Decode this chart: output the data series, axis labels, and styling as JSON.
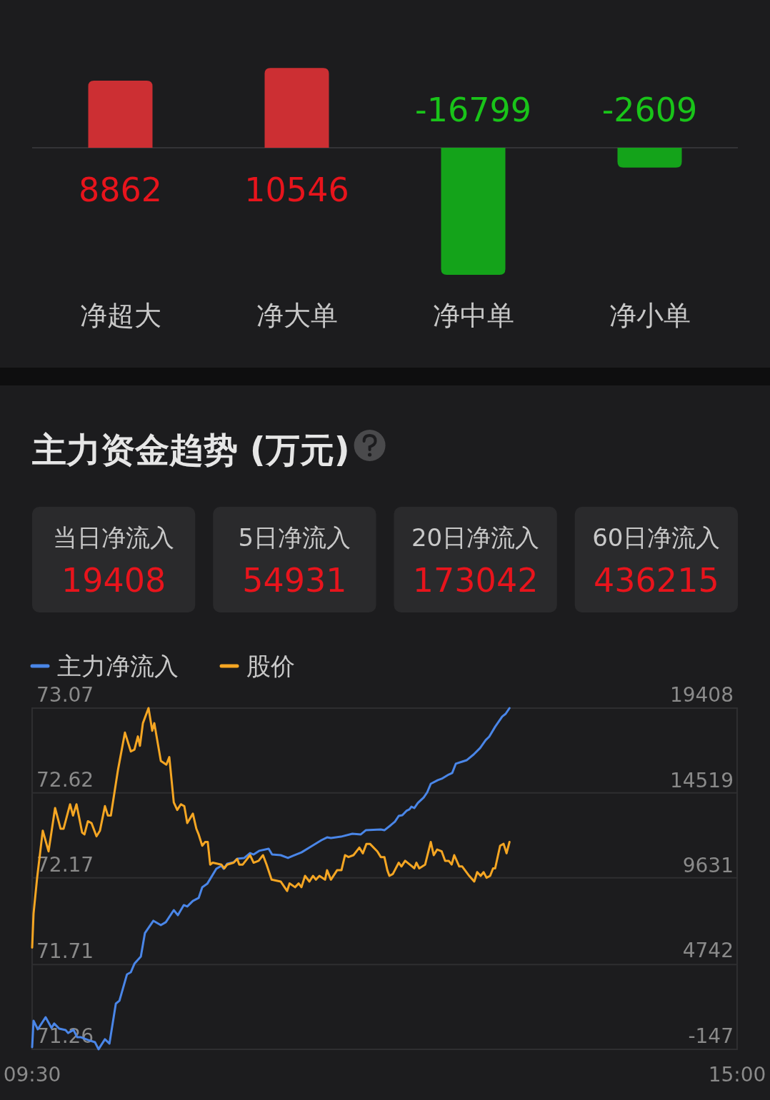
{
  "chart_data": [
    {
      "type": "bar",
      "categories": [
        "净超大",
        "净大单",
        "净中单",
        "净小单"
      ],
      "values": [
        8862,
        10546,
        -16799,
        -2609
      ],
      "colors": [
        "#cc2f33",
        "#cc2f33",
        "#14a31a",
        "#14a31a"
      ],
      "data_labels": true
    },
    {
      "type": "other",
      "title": "主力资金趋势 (万元)",
      "categories": [
        "当日净流入",
        "5日净流入",
        "20日净流入",
        "60日净流入"
      ],
      "values": [
        19408,
        54931,
        173042,
        436215
      ],
      "data_labels": true
    },
    {
      "type": "line",
      "legend": "top left",
      "grid": "y",
      "xlim": [
        9.5,
        15
      ],
      "xticks": [
        {
          "value": 9.5,
          "label": "09:30"
        },
        {
          "value": 15,
          "label": "15:00"
        }
      ],
      "ylim": [
        71.26,
        73.07
      ],
      "yticks": [
        73.07,
        72.62,
        72.17,
        71.71,
        71.26
      ],
      "y2lim": [
        -147,
        19408
      ],
      "y2ticks": [
        19408,
        14519,
        9631,
        4742,
        -147
      ],
      "series": [
        {
          "name": "主力净流入",
          "color": "#4a86e8",
          "axis": "y2",
          "x": [
            9.5,
            9.511,
            9.544,
            9.605,
            9.651,
            9.672,
            9.711,
            9.761,
            9.78,
            9.823,
            9.851,
            9.878,
            9.935,
            9.99,
            10.018,
            10.068,
            10.103,
            10.153,
            10.181,
            10.24,
            10.27,
            10.298,
            10.348,
            10.38,
            10.446,
            10.504,
            10.543,
            10.605,
            10.637,
            10.683,
            10.71,
            10.754,
            10.799,
            10.827,
            10.866,
            10.937,
            10.976,
            10.994,
            11.022,
            11.072,
            11.1,
            11.155,
            11.2,
            11.228,
            11.271,
            11.345,
            11.372,
            11.439,
            11.496,
            11.535,
            11.601,
            11.684,
            11.757,
            11.801,
            11.831,
            11.909,
            11.998,
            12.064,
            12.103,
            12.22,
            12.248,
            12.298,
            12.33,
            12.36,
            12.388,
            12.42,
            12.443,
            12.459,
            12.481,
            12.509,
            12.555,
            12.582,
            12.61,
            12.665,
            12.695,
            12.75,
            12.777,
            12.805,
            12.855,
            12.889,
            12.944,
            12.995,
            13.038,
            13.066,
            13.112,
            13.167,
            13.194,
            13.224
          ],
          "values": [
            -20,
            1490,
            1000,
            1690,
            1080,
            1330,
            1040,
            960,
            790,
            960,
            550,
            550,
            390,
            260,
            -140,
            430,
            180,
            2470,
            2640,
            4150,
            4270,
            4760,
            5170,
            6520,
            7220,
            6970,
            7140,
            7830,
            7540,
            8120,
            8040,
            8360,
            8530,
            9140,
            9340,
            10200,
            10370,
            10200,
            10490,
            10570,
            10780,
            10820,
            11100,
            11020,
            11230,
            11350,
            11020,
            10980,
            10820,
            10940,
            11140,
            11510,
            11840,
            12000,
            11960,
            12040,
            12210,
            12170,
            12410,
            12450,
            12410,
            12700,
            12900,
            13230,
            13270,
            13520,
            13600,
            13760,
            13680,
            13970,
            14290,
            14580,
            15070,
            15280,
            15360,
            15600,
            15690,
            16220,
            16340,
            16420,
            16750,
            17120,
            17570,
            17770,
            18340,
            18920,
            19080,
            19408
          ]
        },
        {
          "name": "股价",
          "color": "#f5a623",
          "axis": "y",
          "x": [
            9.5,
            9.511,
            9.539,
            9.583,
            9.628,
            9.679,
            9.722,
            9.745,
            9.796,
            9.819,
            9.846,
            9.89,
            9.908,
            9.935,
            9.963,
            10.002,
            10.029,
            10.068,
            10.091,
            10.114,
            10.169,
            10.224,
            10.27,
            10.298,
            10.325,
            10.341,
            10.364,
            10.408,
            10.437,
            10.453,
            10.504,
            10.547,
            10.57,
            10.605,
            10.632,
            10.66,
            10.687,
            10.71,
            10.754,
            10.781,
            10.799,
            10.827,
            10.85,
            10.87,
            10.889,
            10.909,
            10.976,
            10.999,
            11.022,
            11.072,
            11.1,
            11.116,
            11.143,
            11.2,
            11.228,
            11.267,
            11.301,
            11.329,
            11.368,
            11.439,
            11.489,
            11.508,
            11.551,
            11.579,
            11.601,
            11.629,
            11.663,
            11.691,
            11.714,
            11.741,
            11.785,
            11.801,
            11.831,
            11.879,
            11.913,
            11.941,
            11.968,
            12.007,
            12.053,
            12.08,
            12.108,
            12.135,
            12.193,
            12.22,
            12.248,
            12.271,
            12.287,
            12.314,
            12.36,
            12.381,
            12.41,
            12.465,
            12.481,
            12.498,
            12.52,
            12.566,
            12.61,
            12.633,
            12.66,
            12.695,
            12.722,
            12.75,
            12.773,
            12.793,
            12.832,
            12.855,
            12.91,
            12.949,
            12.972,
            12.999,
            13.022,
            13.045,
            13.073,
            13.096,
            13.112,
            13.151,
            13.178,
            13.201,
            13.224
          ],
          "values": [
            71.8,
            71.98,
            72.17,
            72.42,
            72.31,
            72.54,
            72.43,
            72.43,
            72.56,
            72.5,
            72.56,
            72.41,
            72.4,
            72.47,
            72.46,
            72.39,
            72.42,
            72.55,
            72.5,
            72.5,
            72.74,
            72.94,
            72.84,
            72.85,
            72.92,
            72.87,
            72.99,
            73.07,
            72.95,
            72.99,
            72.79,
            72.77,
            72.81,
            72.57,
            72.53,
            72.56,
            72.55,
            72.46,
            72.51,
            72.43,
            72.4,
            72.34,
            72.36,
            72.36,
            72.24,
            72.25,
            72.24,
            72.22,
            72.24,
            72.25,
            72.27,
            72.24,
            72.24,
            72.29,
            72.25,
            72.26,
            72.29,
            72.24,
            72.16,
            72.15,
            72.1,
            72.14,
            72.12,
            72.14,
            72.12,
            72.18,
            72.15,
            72.18,
            72.16,
            72.18,
            72.16,
            72.21,
            72.16,
            72.21,
            72.21,
            72.29,
            72.28,
            72.29,
            72.33,
            72.3,
            72.35,
            72.35,
            72.31,
            72.28,
            72.28,
            72.21,
            72.18,
            72.19,
            72.25,
            72.23,
            72.26,
            72.23,
            72.22,
            72.25,
            72.22,
            72.24,
            72.36,
            72.29,
            72.32,
            72.31,
            72.26,
            72.26,
            72.24,
            72.29,
            72.23,
            72.23,
            72.18,
            72.15,
            72.2,
            72.18,
            72.2,
            72.17,
            72.18,
            72.22,
            72.22,
            72.34,
            72.35,
            72.3,
            72.36
          ]
        }
      ]
    }
  ]
}
